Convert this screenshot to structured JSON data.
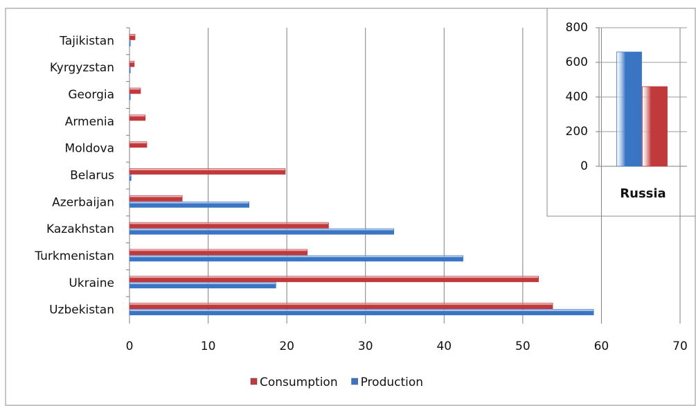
{
  "chart_data": [
    {
      "type": "bar",
      "orientation": "horizontal",
      "categories": [
        "Tajikistan",
        "Kyrgyzstan",
        "Georgia",
        "Armenia",
        "Moldova",
        "Belarus",
        "Azerbaijan",
        "Kazakhstan",
        "Turkmenistan",
        "Ukraine",
        "Uzbekistan"
      ],
      "series": [
        {
          "name": "Consumption",
          "color": "#c0393b",
          "values": [
            0.7,
            0.6,
            1.4,
            2.0,
            2.2,
            19.8,
            6.7,
            25.3,
            22.6,
            52.0,
            53.8
          ]
        },
        {
          "name": "Production",
          "color": "#3a75c4",
          "values": [
            0.1,
            0.1,
            0.1,
            0,
            0,
            0.2,
            15.2,
            33.6,
            42.4,
            18.6,
            59.0
          ]
        }
      ],
      "xlim": [
        0,
        70
      ],
      "xticks": [
        0,
        10,
        20,
        30,
        40,
        50,
        60,
        70
      ],
      "grid": true,
      "legend": "bottom"
    },
    {
      "type": "bar",
      "orientation": "vertical",
      "categories": [
        "Russia"
      ],
      "series": [
        {
          "color": "#3a75c4",
          "values": [
            660
          ]
        },
        {
          "color": "#c0393b",
          "values": [
            460
          ]
        }
      ],
      "ylim": [
        0,
        800
      ],
      "yticks": [
        0,
        200,
        400,
        600,
        800
      ],
      "grid": true
    }
  ]
}
